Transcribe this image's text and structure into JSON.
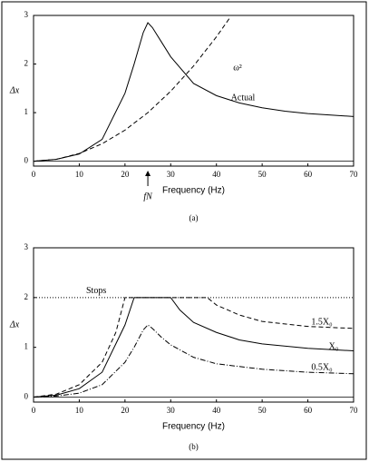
{
  "chart_data": [
    {
      "type": "line",
      "caption": "(a)",
      "x_label": "Frequency (Hz)",
      "y_label": "Δx",
      "xlim": [
        0,
        70
      ],
      "xticks": [
        0,
        10,
        20,
        30,
        40,
        50,
        60,
        70
      ],
      "ylim": [
        -0.1,
        3
      ],
      "yticks": [
        0,
        1,
        2,
        3
      ],
      "zero_line": true,
      "natural_frequency": 25,
      "natural_frequency_label": "fN",
      "series": [
        {
          "name": "ω²",
          "color": "#000",
          "dash": "dashed",
          "x": [
            0,
            5,
            10,
            15,
            20,
            25,
            30,
            35,
            40,
            43
          ],
          "values": [
            0,
            0.04,
            0.16,
            0.36,
            0.64,
            1,
            1.44,
            1.96,
            2.56,
            2.96
          ]
        },
        {
          "name": "Actual",
          "color": "#000",
          "dash": "solid",
          "x": [
            0,
            5,
            10,
            15,
            20,
            22,
            24,
            25,
            26,
            28,
            30,
            35,
            40,
            45,
            50,
            55,
            60,
            65,
            70
          ],
          "values": [
            0,
            0.04,
            0.15,
            0.45,
            1.4,
            2.0,
            2.65,
            2.85,
            2.75,
            2.45,
            2.15,
            1.6,
            1.35,
            1.2,
            1.1,
            1.03,
            0.98,
            0.95,
            0.92
          ]
        }
      ]
    },
    {
      "type": "line",
      "caption": "(b)",
      "x_label": "Frequency (Hz)",
      "y_label": "Δx",
      "xlim": [
        0,
        70
      ],
      "xticks": [
        0,
        10,
        20,
        30,
        40,
        50,
        60,
        70
      ],
      "ylim": [
        -0.1,
        3
      ],
      "yticks": [
        0,
        1,
        2,
        3
      ],
      "zero_line": true,
      "stop_level": 2,
      "stop_label": "Stops",
      "series": [
        {
          "name": "1.5X₀",
          "color": "#000",
          "dash": "dashed",
          "x": [
            0,
            5,
            10,
            15,
            18,
            20,
            38,
            40,
            45,
            50,
            60,
            70
          ],
          "values": [
            0,
            0.06,
            0.25,
            0.7,
            1.3,
            2,
            2,
            1.85,
            1.65,
            1.52,
            1.42,
            1.38
          ]
        },
        {
          "name": "X₀",
          "color": "#000",
          "dash": "solid",
          "x": [
            0,
            5,
            10,
            15,
            20,
            22,
            30,
            32,
            35,
            40,
            45,
            50,
            60,
            70
          ],
          "values": [
            0,
            0.04,
            0.17,
            0.5,
            1.45,
            2,
            2,
            1.75,
            1.5,
            1.3,
            1.15,
            1.07,
            0.98,
            0.93
          ]
        },
        {
          "name": "0.5X₀",
          "color": "#000",
          "dash": "dashdot",
          "x": [
            0,
            5,
            10,
            15,
            20,
            22,
            24,
            25,
            26,
            28,
            30,
            35,
            40,
            50,
            60,
            70
          ],
          "values": [
            0,
            0.02,
            0.08,
            0.25,
            0.7,
            1.0,
            1.35,
            1.45,
            1.38,
            1.2,
            1.05,
            0.8,
            0.67,
            0.56,
            0.5,
            0.47
          ]
        }
      ]
    }
  ]
}
